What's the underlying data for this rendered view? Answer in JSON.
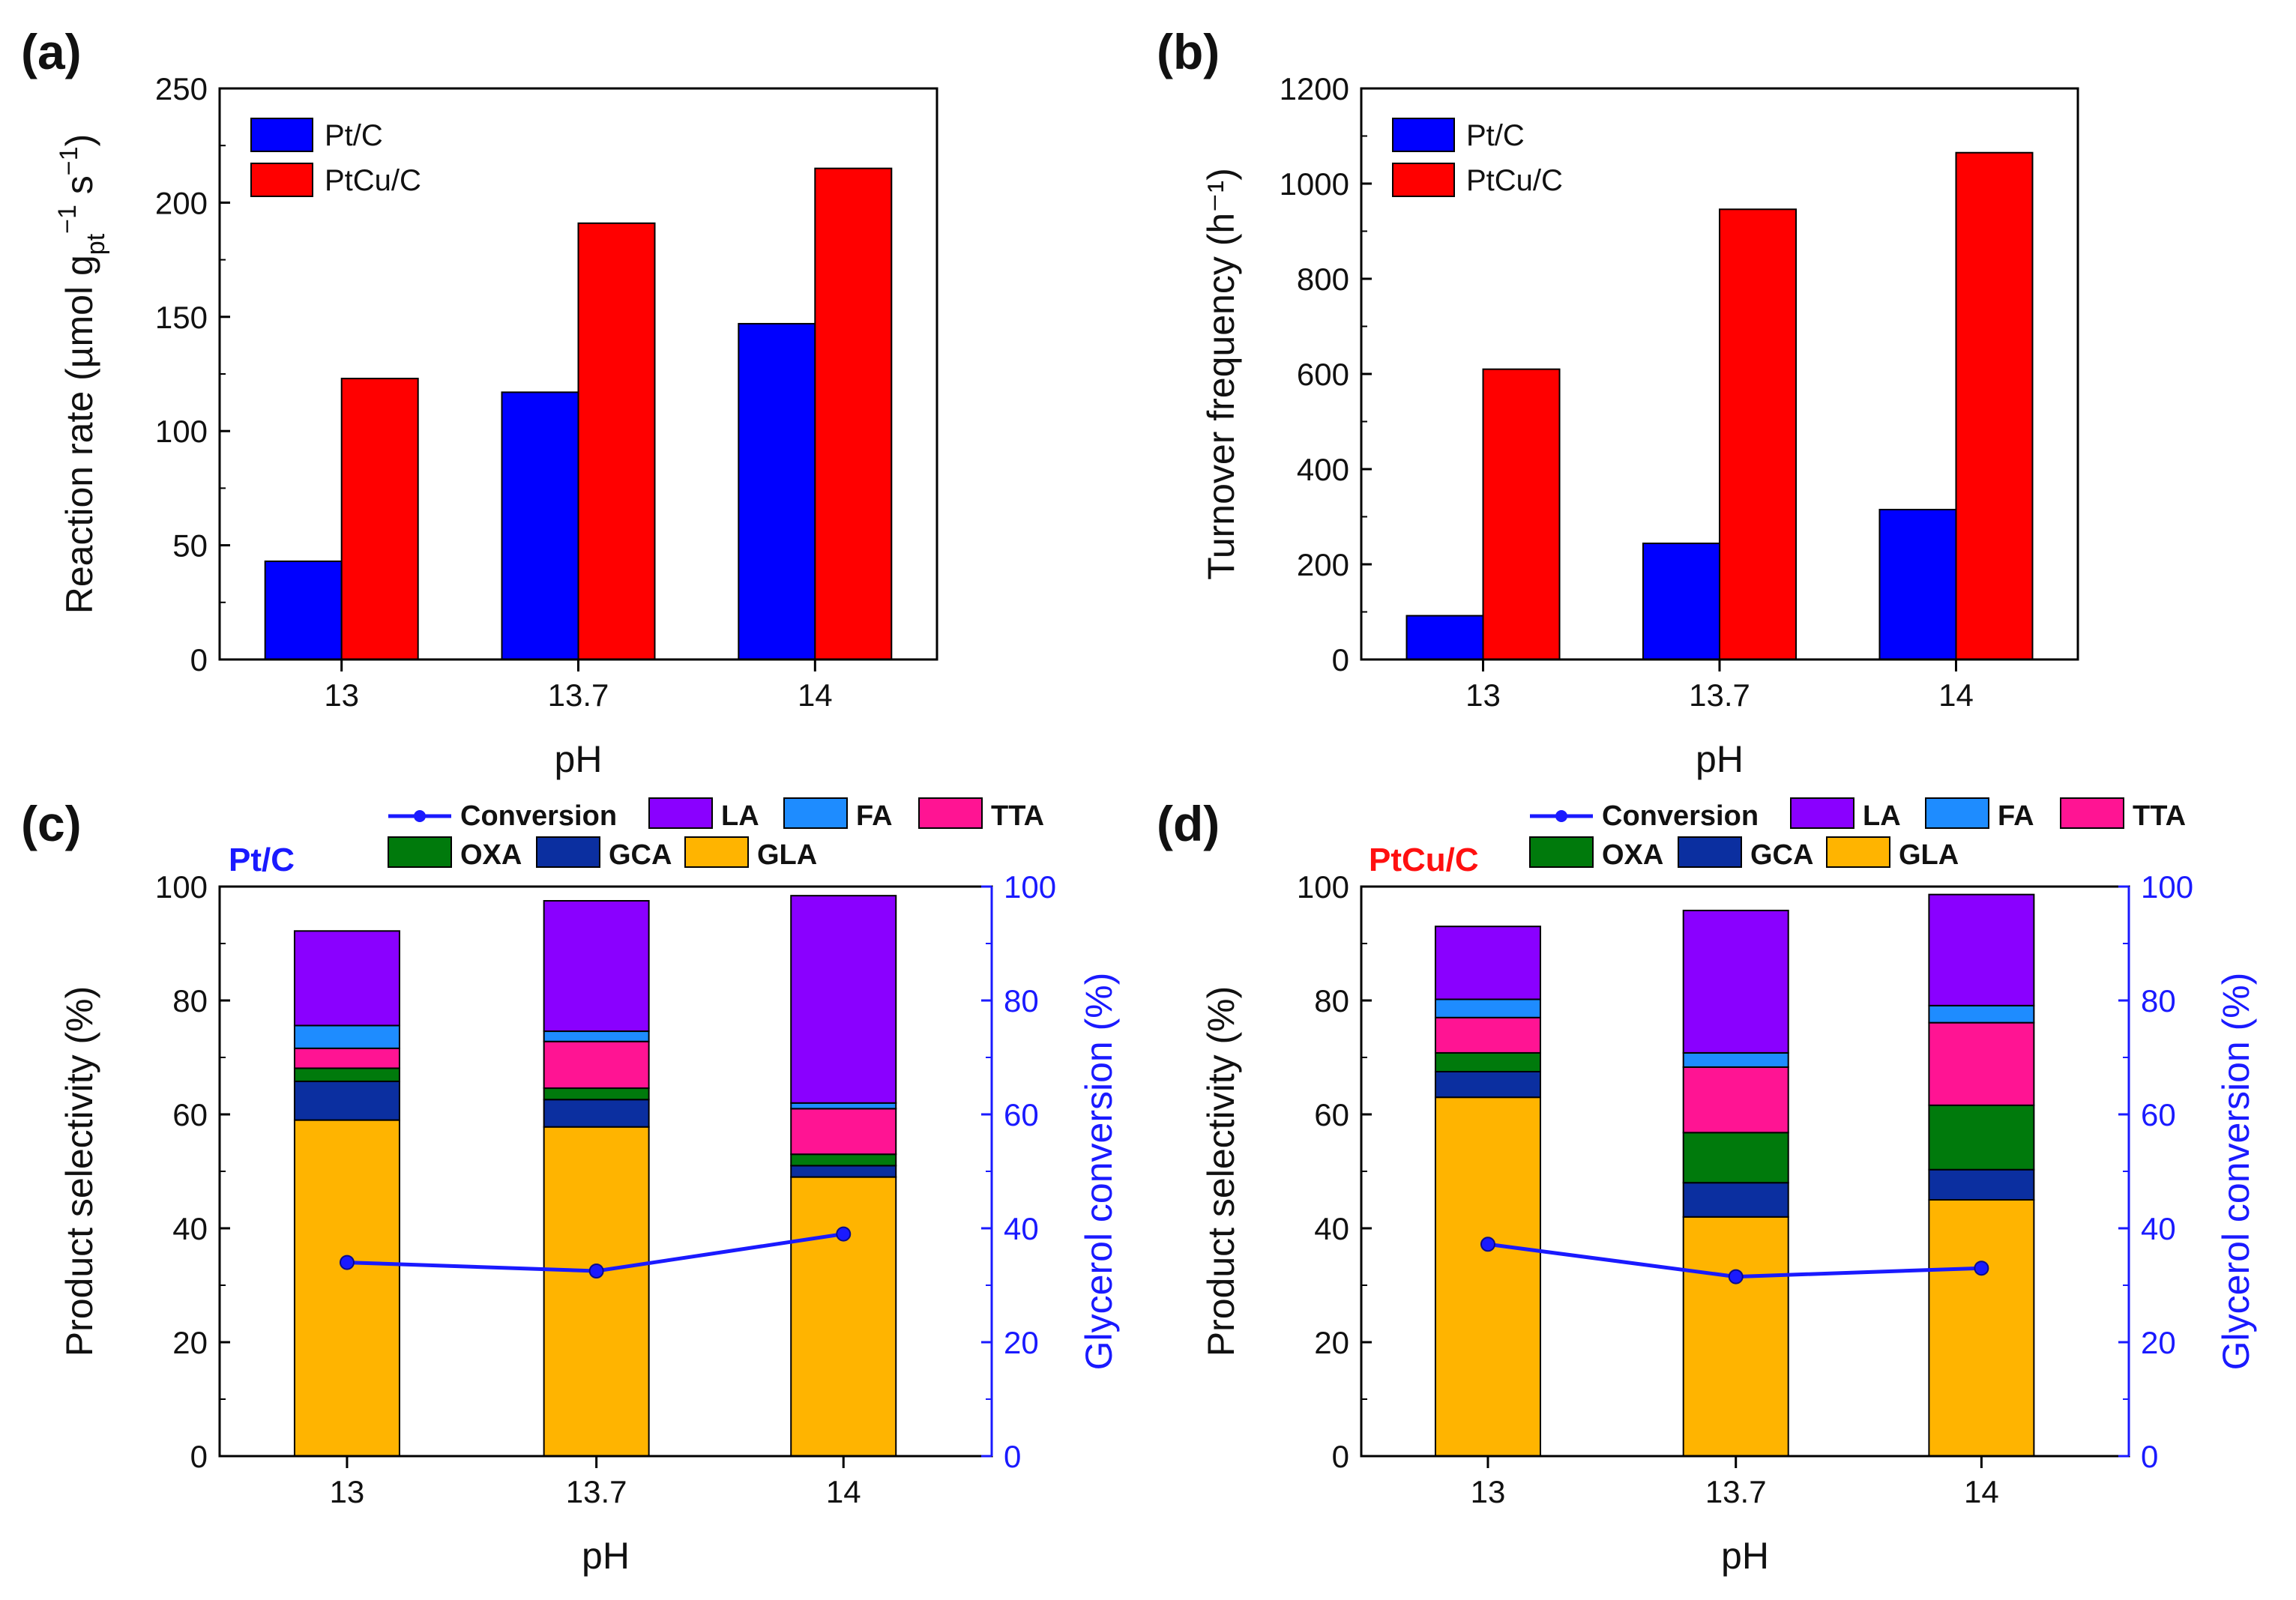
{
  "figure": {
    "panels": [
      {
        "id": "a",
        "letter": "(a)"
      },
      {
        "id": "b",
        "letter": "(b)"
      },
      {
        "id": "c",
        "letter": "(c)",
        "tag": "Pt/C",
        "tag_color": "#1a1aff"
      },
      {
        "id": "d",
        "letter": "(d)",
        "tag": "PtCu/C",
        "tag_color": "#ff1010"
      }
    ]
  },
  "chart_data": [
    {
      "panel": "a",
      "type": "bar",
      "categories": [
        "13",
        "13.7",
        "14"
      ],
      "series": [
        {
          "name": "Pt/C",
          "color": "#0000ff",
          "values": [
            43,
            117,
            147
          ]
        },
        {
          "name": "PtCu/C",
          "color": "#ff0000",
          "values": [
            123,
            191,
            215
          ]
        }
      ],
      "xlabel": "pH",
      "ylabel_parts": [
        "Reaction rate (µmol g",
        "pt",
        "−1",
        " s",
        "−1",
        ")"
      ],
      "ylim": [
        0,
        250
      ],
      "yticks": [
        "0",
        "50",
        "100",
        "150",
        "200",
        "250"
      ],
      "legend": "top-left"
    },
    {
      "panel": "b",
      "type": "bar",
      "categories": [
        "13",
        "13.7",
        "14"
      ],
      "series": [
        {
          "name": "Pt/C",
          "color": "#0000ff",
          "values": [
            92,
            244,
            315
          ]
        },
        {
          "name": "PtCu/C",
          "color": "#ff0000",
          "values": [
            610,
            946,
            1065
          ]
        }
      ],
      "xlabel": "pH",
      "ylabel": "Turnover frequency (h⁻¹)",
      "ylim": [
        0,
        1200
      ],
      "yticks": [
        "0",
        "200",
        "400",
        "600",
        "800",
        "1000",
        "1200"
      ],
      "legend": "top-left"
    },
    {
      "panel": "c",
      "type": "bar",
      "stacked": true,
      "categories": [
        "13",
        "13.7",
        "14"
      ],
      "series": [
        {
          "name": "GLA",
          "color": "#ffb400",
          "values": [
            59.0,
            57.8,
            49.0
          ]
        },
        {
          "name": "GCA",
          "color": "#0b2fa0",
          "values": [
            6.8,
            4.8,
            2.0
          ]
        },
        {
          "name": "OXA",
          "color": "#007a0c",
          "values": [
            2.3,
            2.0,
            2.0
          ]
        },
        {
          "name": "TTA",
          "color": "#ff1493",
          "values": [
            3.5,
            8.2,
            8.0
          ]
        },
        {
          "name": "FA",
          "color": "#1e8cff",
          "values": [
            4.0,
            1.8,
            1.0
          ]
        },
        {
          "name": "LA",
          "color": "#8a00ff",
          "values": [
            16.6,
            22.9,
            36.4
          ]
        }
      ],
      "line": {
        "name": "Conversion",
        "color": "#1a1aff",
        "values": [
          34,
          32.5,
          39
        ]
      },
      "xlabel": "pH",
      "ylabel": "Product selectivity (%)",
      "y2label": "Glycerol conversion (%)",
      "ylim": [
        0,
        100
      ],
      "y2lim": [
        0,
        100
      ],
      "yticks": [
        "0",
        "20",
        "40",
        "60",
        "80",
        "100"
      ],
      "y2ticks": [
        "0",
        "20",
        "40",
        "60",
        "80",
        "100"
      ],
      "legend": "top"
    },
    {
      "panel": "d",
      "type": "bar",
      "stacked": true,
      "categories": [
        "13",
        "13.7",
        "14"
      ],
      "series": [
        {
          "name": "GLA",
          "color": "#ffb400",
          "values": [
            63.0,
            42.0,
            45.0
          ]
        },
        {
          "name": "GCA",
          "color": "#0b2fa0",
          "values": [
            4.5,
            6.0,
            5.3
          ]
        },
        {
          "name": "OXA",
          "color": "#007a0c",
          "values": [
            3.3,
            8.8,
            11.3
          ]
        },
        {
          "name": "TTA",
          "color": "#ff1493",
          "values": [
            6.2,
            11.5,
            14.5
          ]
        },
        {
          "name": "FA",
          "color": "#1e8cff",
          "values": [
            3.2,
            2.5,
            3.0
          ]
        },
        {
          "name": "LA",
          "color": "#8a00ff",
          "values": [
            12.8,
            25.0,
            19.5
          ]
        }
      ],
      "line": {
        "name": "Conversion",
        "color": "#1a1aff",
        "values": [
          37.2,
          31.5,
          33
        ]
      },
      "xlabel": "pH",
      "ylabel": "Product selectivity (%)",
      "y2label": "Glycerol conversion (%)",
      "ylim": [
        0,
        100
      ],
      "y2lim": [
        0,
        100
      ],
      "yticks": [
        "0",
        "20",
        "40",
        "60",
        "80",
        "100"
      ],
      "y2ticks": [
        "0",
        "20",
        "40",
        "60",
        "80",
        "100"
      ],
      "legend": "top"
    }
  ]
}
